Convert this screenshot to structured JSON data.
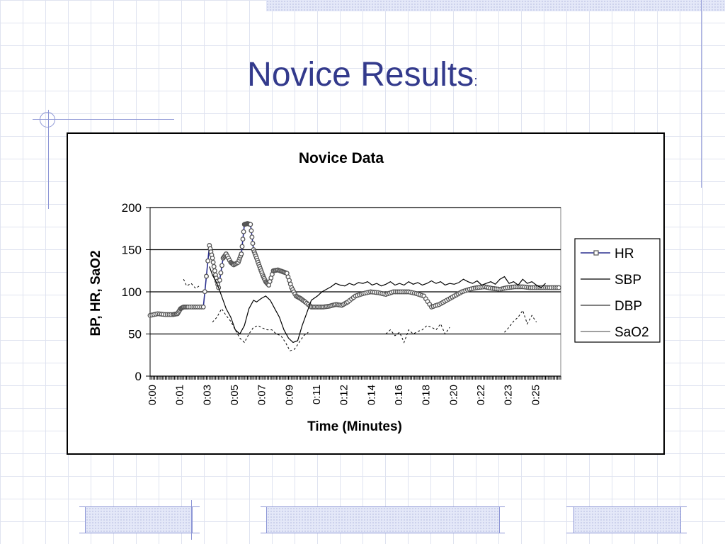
{
  "slide": {
    "title": "Novice Results",
    "title_suffix": ":"
  },
  "colors": {
    "title": "#333a8c",
    "hr_series": "#2a2f8f",
    "background_grid": "#dfe3f0"
  },
  "chart_data": {
    "type": "line",
    "title": "Novice Data",
    "xlabel": "Time (Minutes)",
    "ylabel": "BP, HR, SaO2",
    "ylim": [
      0,
      200
    ],
    "yticks": [
      0,
      50,
      100,
      150,
      200
    ],
    "xlim": [
      0,
      27
    ],
    "xticks": [
      0,
      1,
      2,
      3,
      4,
      5,
      6,
      7,
      8,
      9,
      10,
      11,
      12,
      13,
      14
    ],
    "xtick_labels": [
      "0:00",
      "0:01",
      "0:03",
      "0:05",
      "0:07",
      "0:09",
      "0:11",
      "0:12",
      "0:14",
      "0:16",
      "0:18",
      "0:20",
      "0:22",
      "0:23",
      "0:25"
    ],
    "grid": "horizontal",
    "legend_position": "right",
    "series": [
      {
        "name": "HR",
        "style": "line-with-markers",
        "x": [
          0,
          0.5,
          1,
          1.5,
          1.8,
          2,
          2.2,
          2.5,
          3,
          3.5,
          3.9,
          4.1,
          4.3,
          4.5,
          4.8,
          5.0,
          5.3,
          5.5,
          5.8,
          6.0,
          6.2,
          6.4,
          6.6,
          6.8,
          7.0,
          7.2,
          7.4,
          7.6,
          7.8,
          8.1,
          8.4,
          8.7,
          9.0,
          9.3,
          9.6,
          9.9,
          10.2,
          10.6,
          11.0,
          11.4,
          11.8,
          12.2,
          12.6,
          13.0,
          13.5,
          14.0,
          14.5,
          15.0,
          15.5,
          16.0,
          16.5,
          17.0,
          17.5,
          18.0,
          18.5,
          19.0,
          19.5,
          20.0,
          20.5,
          21.0,
          21.5,
          22.0,
          22.5,
          23.0,
          23.5,
          24.0,
          24.5,
          25.0,
          25.5,
          26.0,
          26.5,
          27.0
        ],
        "y": [
          72,
          74,
          73,
          73,
          74,
          80,
          82,
          82,
          82,
          82,
          155,
          140,
          120,
          105,
          140,
          145,
          135,
          132,
          135,
          145,
          180,
          181,
          180,
          150,
          140,
          130,
          120,
          112,
          108,
          125,
          126,
          124,
          122,
          105,
          95,
          92,
          88,
          82,
          82,
          82,
          83,
          85,
          84,
          88,
          95,
          98,
          100,
          99,
          97,
          100,
          100,
          100,
          98,
          95,
          82,
          85,
          90,
          95,
          100,
          103,
          105,
          106,
          104,
          103,
          105,
          106,
          106,
          105,
          105,
          105,
          105,
          105
        ]
      },
      {
        "name": "SBP",
        "style": "line",
        "x": [
          0,
          0.2,
          0.4,
          2.0,
          2.2,
          2.5,
          2.8,
          3.0,
          3.3,
          3.6,
          3.9,
          4.1,
          4.4,
          4.7,
          5.0,
          5.3,
          5.6,
          5.9,
          6.2,
          6.5,
          6.8,
          7.0,
          7.3,
          7.6,
          7.9,
          8.2,
          8.5,
          8.8,
          9.1,
          9.4,
          9.7,
          10.0,
          10.3,
          10.6,
          11.0,
          11.3,
          11.6,
          11.9,
          12.2,
          12.5,
          12.8,
          13.1,
          13.4,
          13.7,
          14.0,
          14.3,
          14.6,
          14.9,
          15.2,
          15.5,
          15.8,
          16.1,
          16.4,
          16.7,
          17.0,
          17.3,
          17.6,
          17.9,
          18.2,
          18.5,
          18.8,
          19.1,
          19.4,
          19.7,
          20.0,
          20.3,
          20.6,
          20.9,
          21.2,
          21.5,
          21.8,
          22.1,
          22.4,
          22.7,
          23.0,
          23.3,
          23.6,
          23.9,
          24.2,
          24.5,
          24.8,
          25.1,
          25.4,
          25.7,
          26.0
        ],
        "y": [
          118,
          null,
          null,
          null,
          null,
          null,
          null,
          null,
          null,
          null,
          130,
          120,
          110,
          95,
          80,
          70,
          55,
          50,
          60,
          80,
          90,
          88,
          92,
          95,
          90,
          80,
          70,
          55,
          45,
          40,
          42,
          60,
          75,
          90,
          95,
          100,
          103,
          106,
          110,
          108,
          107,
          110,
          108,
          111,
          110,
          112,
          108,
          110,
          107,
          109,
          112,
          108,
          110,
          108,
          112,
          109,
          111,
          108,
          110,
          113,
          110,
          112,
          108,
          110,
          109,
          111,
          115,
          112,
          110,
          113,
          108,
          110,
          112,
          109,
          115,
          118,
          110,
          112,
          108,
          115,
          110,
          112,
          108,
          105,
          110
        ],
        "x_segments": "approximate"
      },
      {
        "name": "DBP",
        "style": "line",
        "x": [
          2.2,
          2.4,
          2.7,
          3.0,
          3.3,
          3.6,
          3.9,
          4.1,
          4.4,
          4.7,
          5.0,
          5.3,
          5.6,
          5.9,
          6.2,
          6.5,
          6.8,
          7.1,
          7.4,
          7.7,
          8.0,
          8.3,
          8.6,
          8.9,
          9.2,
          9.5,
          9.8,
          10.1,
          10.4,
          10.7,
          11.0,
          11.3,
          11.6,
          11.9,
          12.2,
          12.5,
          12.8,
          13.1,
          13.4,
          13.7,
          14.0,
          14.3,
          14.6,
          14.9,
          15.2,
          15.5,
          15.8,
          16.1,
          16.4,
          16.7,
          17.0,
          17.3,
          17.6,
          17.9,
          18.2,
          18.5,
          18.8,
          19.1,
          19.4,
          19.7,
          20.0,
          20.3,
          20.6,
          20.9,
          21.2,
          21.5,
          21.8,
          22.1,
          22.4,
          22.7,
          23.0,
          23.3,
          23.6,
          23.9,
          24.2,
          24.5,
          24.8,
          25.1,
          25.4
        ],
        "y": [
          115,
          107,
          110,
          104,
          108,
          null,
          null,
          64,
          70,
          80,
          72,
          65,
          55,
          45,
          40,
          50,
          58,
          60,
          57,
          55,
          55,
          50,
          48,
          40,
          30,
          32,
          40,
          48,
          52,
          null,
          null,
          null,
          null,
          null,
          null,
          null,
          null,
          null,
          null,
          null,
          null,
          null,
          null,
          null,
          null,
          50,
          55,
          48,
          52,
          40,
          55,
          50,
          53,
          55,
          60,
          58,
          55,
          62,
          50,
          58,
          null,
          null,
          null,
          null,
          null,
          null,
          null,
          null,
          null,
          null,
          null,
          52,
          58,
          65,
          70,
          78,
          62,
          72,
          64
        ]
      },
      {
        "name": "SaO2",
        "style": "line",
        "x": [],
        "y": []
      }
    ]
  }
}
